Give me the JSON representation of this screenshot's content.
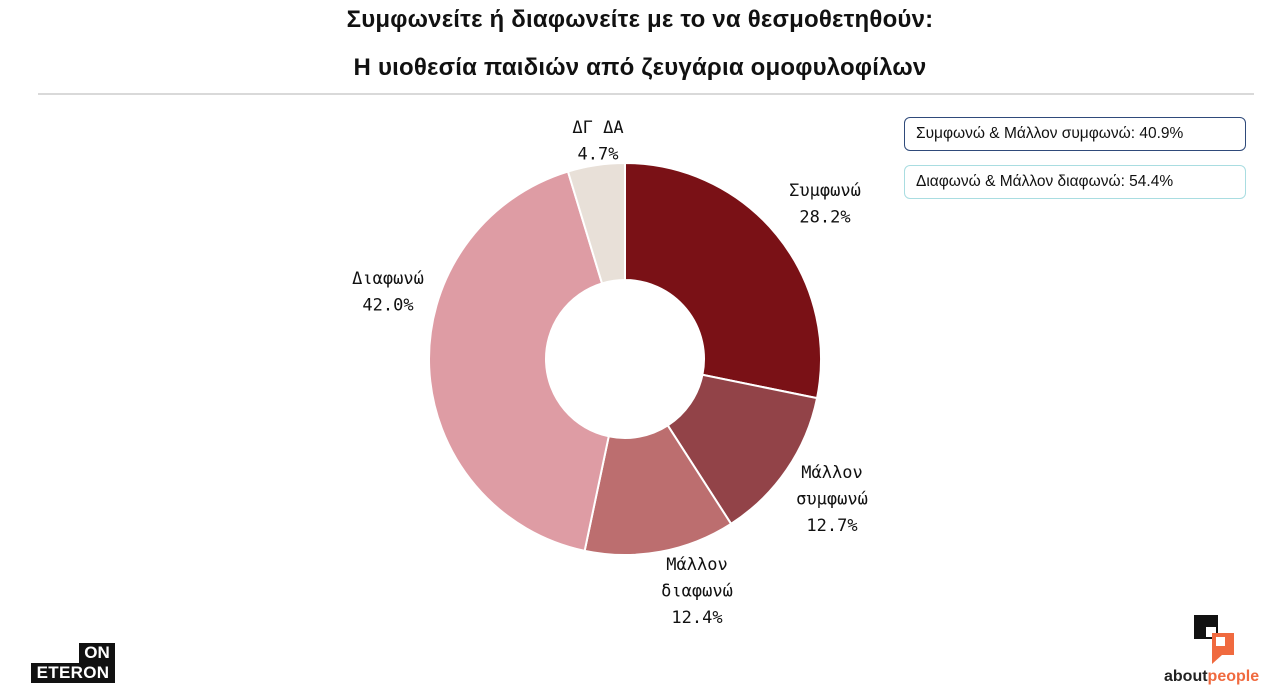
{
  "title_line1": "Συμφωνείτε ή διαφωνείτε με το να θεσμοθετηθούν:",
  "title_line2": "Η υιοθεσία παιδιών από ζευγάρια ομοφυλοφίλων",
  "summary": {
    "agree": "Συμφωνώ & Μάλλον συμφωνώ: 40.9%",
    "disagree": "Διαφωνώ & Μάλλον διαφωνώ: 54.4%"
  },
  "logos": {
    "left_top": "ON",
    "left_bottom": "ETERON",
    "right_a": "about",
    "right_b": "people"
  },
  "chart_data": {
    "type": "pie",
    "donut": true,
    "title": "Συμφωνείτε ή διαφωνείτε με το να θεσμοθετηθούν: Η υιοθεσία παιδιών από ζευγάρια ομοφυλοφίλων",
    "slices": [
      {
        "label_lines": [
          "Συμφωνώ"
        ],
        "value": 28.2,
        "value_label": "28.2%",
        "color": "#7a1116"
      },
      {
        "label_lines": [
          "Μάλλον",
          "συμφωνώ"
        ],
        "value": 12.7,
        "value_label": "12.7%",
        "color": "#924348"
      },
      {
        "label_lines": [
          "Μάλλον",
          "διαφωνώ"
        ],
        "value": 12.4,
        "value_label": "12.4%",
        "color": "#bc6e6f"
      },
      {
        "label_lines": [
          "Διαφωνώ"
        ],
        "value": 42.0,
        "value_label": "42.0%",
        "color": "#de9ca4"
      },
      {
        "label_lines": [
          "ΔΓ ΔΑ"
        ],
        "value": 4.7,
        "value_label": "4.7%",
        "color": "#e8e0d8"
      }
    ],
    "start": "12 o'clock",
    "direction": "clockwise"
  }
}
